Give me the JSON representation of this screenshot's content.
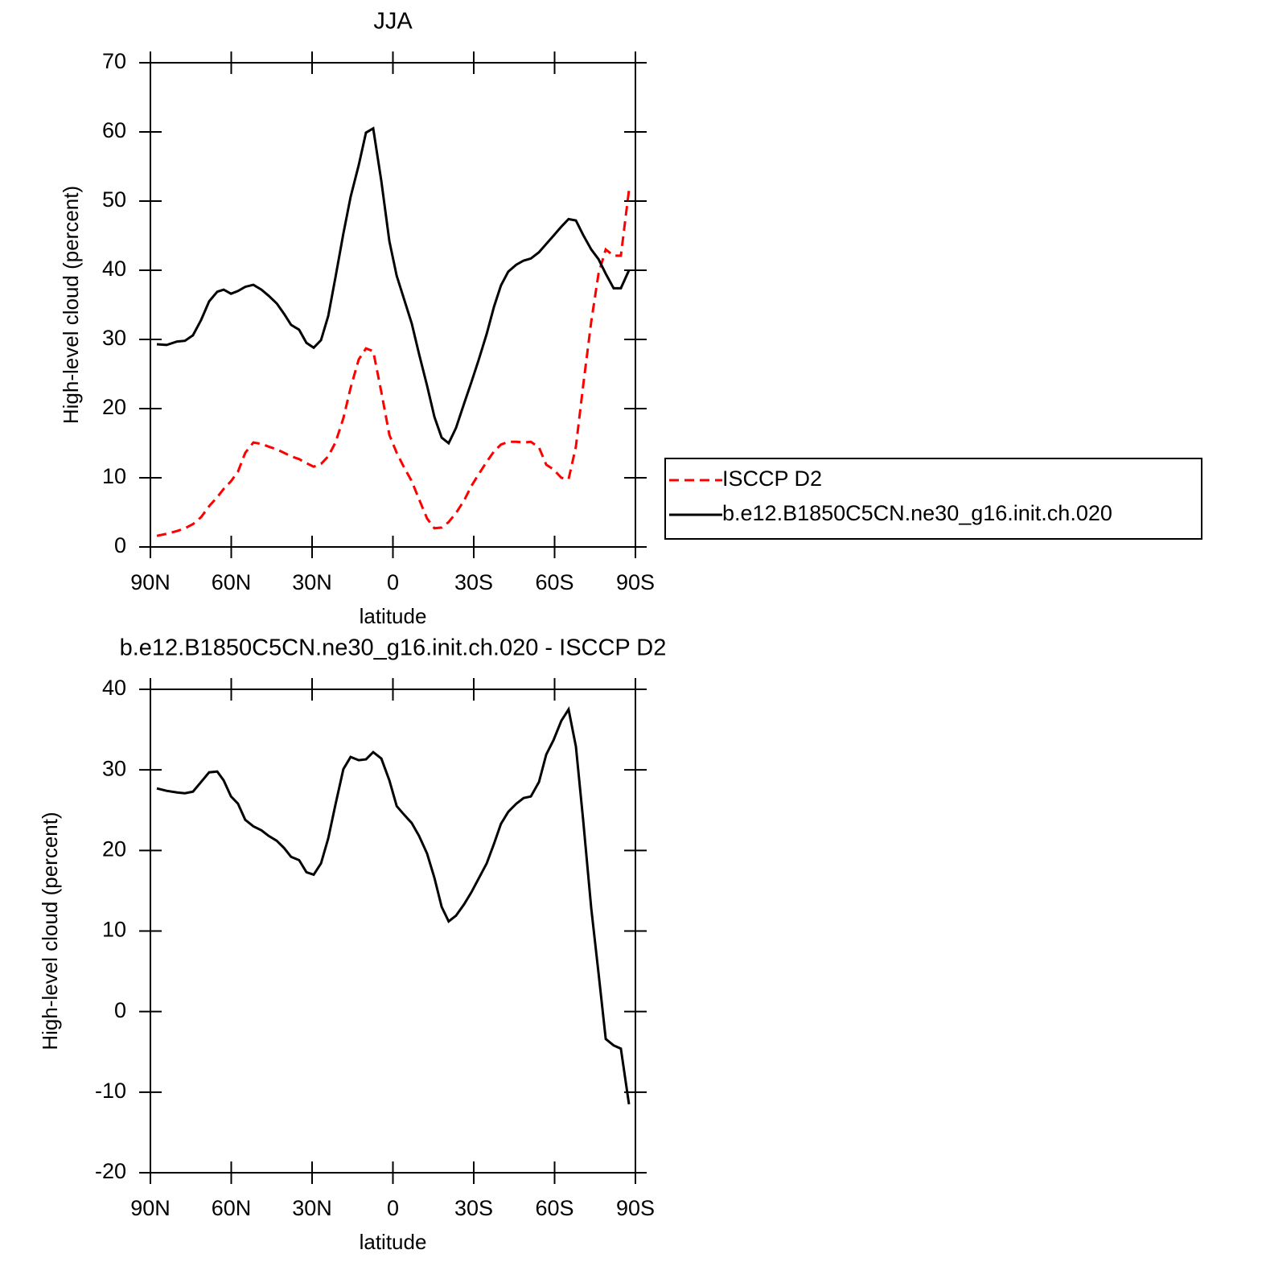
{
  "chart_data": [
    {
      "type": "line",
      "title": "JJA",
      "xlabel": "latitude",
      "ylabel": "High-level cloud (percent)",
      "x": [
        87.6,
        84.0,
        80.1,
        77.2,
        74.2,
        71.2,
        68.2,
        65.2,
        62.8,
        60.1,
        57.5,
        54.8,
        51.8,
        48.8,
        46.1,
        43.1,
        40.4,
        37.8,
        34.8,
        32.1,
        29.4,
        26.7,
        24.0,
        21.3,
        18.4,
        15.7,
        12.7,
        10.0,
        7.3,
        4.3,
        1.3,
        -1.4,
        -4.0,
        -7.0,
        -9.7,
        -12.7,
        -15.4,
        -18.1,
        -20.7,
        -23.4,
        -26.4,
        -29.1,
        -31.8,
        -34.8,
        -37.5,
        -40.1,
        -42.8,
        -45.8,
        -48.5,
        -51.2,
        -54.2,
        -56.9,
        -59.6,
        -62.5,
        -65.2,
        -67.9,
        -70.6,
        -73.6,
        -76.3,
        -79.0,
        -81.9,
        -84.6,
        -87.6
      ],
      "series": [
        {
          "name": "ISCCP D2",
          "color": "#ff0000",
          "line_style": "dashed",
          "values": [
            1.6,
            1.9,
            2.3,
            2.7,
            3.3,
            4.3,
            5.9,
            7.2,
            8.4,
            9.5,
            10.9,
            13.6,
            15.1,
            14.9,
            14.5,
            14.1,
            13.6,
            13.1,
            12.7,
            12.1,
            11.6,
            12.0,
            13.1,
            15.1,
            18.6,
            23.0,
            27.1,
            28.7,
            28.3,
            22.4,
            16.2,
            13.6,
            11.6,
            9.5,
            6.9,
            4.1,
            2.7,
            2.8,
            3.6,
            4.9,
            6.7,
            8.8,
            10.5,
            12.3,
            13.8,
            14.8,
            15.2,
            15.2,
            15.1,
            15.2,
            14.4,
            11.9,
            11.2,
            10.0,
            9.8,
            14.5,
            23.3,
            32.6,
            39.5,
            43.0,
            42.1,
            42.1,
            51.6
          ]
        },
        {
          "name": "b.e12.B1850C5CN.ne30_g16.init.ch.020",
          "color": "#000000",
          "line_style": "solid",
          "values": [
            29.3,
            29.2,
            29.7,
            29.8,
            30.6,
            32.8,
            35.5,
            36.9,
            37.2,
            36.6,
            37.0,
            37.6,
            37.9,
            37.2,
            36.3,
            35.2,
            33.7,
            32.1,
            31.4,
            29.5,
            28.8,
            29.9,
            33.4,
            39.0,
            45.3,
            50.6,
            55.2,
            59.9,
            60.5,
            52.9,
            44.2,
            39.2,
            36.0,
            32.3,
            27.9,
            23.3,
            18.8,
            15.8,
            15.0,
            17.2,
            20.7,
            23.8,
            27.0,
            30.8,
            34.7,
            37.8,
            39.8,
            40.8,
            41.4,
            41.7,
            42.6,
            43.8,
            45.0,
            46.3,
            47.4,
            47.2,
            45.1,
            43.0,
            41.6,
            39.5,
            37.4,
            37.4,
            40.0
          ]
        }
      ],
      "xlim": [
        90,
        -90
      ],
      "xticks": [
        {
          "value": 90,
          "label": "90N"
        },
        {
          "value": 60,
          "label": "60N"
        },
        {
          "value": 30,
          "label": "30N"
        },
        0,
        {
          "value": -30,
          "label": "30S"
        },
        {
          "value": -60,
          "label": "60S"
        },
        {
          "value": -90,
          "label": "90S"
        }
      ],
      "ylim": [
        0,
        70
      ],
      "yticks": [
        0,
        10,
        20,
        30,
        40,
        50,
        60,
        70
      ],
      "legend": "outside-right"
    },
    {
      "type": "line",
      "title": "b.e12.B1850C5CN.ne30_g16.init.ch.020 - ISCCP D2",
      "xlabel": "latitude",
      "ylabel": "High-level cloud (percent)",
      "x": [
        87.6,
        84.0,
        80.1,
        77.2,
        74.2,
        71.2,
        68.2,
        65.2,
        62.8,
        60.1,
        57.5,
        54.8,
        51.8,
        48.8,
        46.1,
        43.1,
        40.4,
        37.8,
        34.8,
        32.1,
        29.4,
        26.7,
        24.0,
        21.3,
        18.4,
        15.7,
        12.7,
        10.0,
        7.3,
        4.3,
        1.3,
        -1.4,
        -4.0,
        -7.0,
        -9.7,
        -12.7,
        -15.4,
        -18.1,
        -20.7,
        -23.4,
        -26.4,
        -29.1,
        -31.8,
        -34.8,
        -37.5,
        -40.1,
        -42.8,
        -45.8,
        -48.5,
        -51.2,
        -54.2,
        -56.9,
        -59.6,
        -62.5,
        -65.2,
        -67.9,
        -70.6,
        -73.6,
        -76.3,
        -79.0,
        -81.9,
        -84.6,
        -87.6
      ],
      "series": [
        {
          "color": "#000000",
          "line_style": "solid",
          "values": [
            27.7,
            27.4,
            27.2,
            27.1,
            27.3,
            28.5,
            29.7,
            29.8,
            28.7,
            26.7,
            25.8,
            23.8,
            23.0,
            22.5,
            21.8,
            21.2,
            20.3,
            19.2,
            18.8,
            17.3,
            17.0,
            18.4,
            21.5,
            25.7,
            30.1,
            31.6,
            31.2,
            31.3,
            32.2,
            31.4,
            28.7,
            25.5,
            24.5,
            23.4,
            21.8,
            19.6,
            16.6,
            13.0,
            11.2,
            11.9,
            13.3,
            14.8,
            16.5,
            18.4,
            20.8,
            23.3,
            24.8,
            25.8,
            26.5,
            26.7,
            28.5,
            31.9,
            33.7,
            36.1,
            37.5,
            32.9,
            23.8,
            12.8,
            4.8,
            -3.4,
            -4.2,
            -4.6,
            -11.5
          ]
        }
      ],
      "xlim": [
        90,
        -90
      ],
      "xticks": [
        {
          "value": 90,
          "label": "90N"
        },
        {
          "value": 60,
          "label": "60N"
        },
        {
          "value": 30,
          "label": "30N"
        },
        0,
        {
          "value": -30,
          "label": "30S"
        },
        {
          "value": -60,
          "label": "60S"
        },
        {
          "value": -90,
          "label": "90S"
        }
      ],
      "ylim": [
        -20,
        40
      ],
      "yticks": [
        -20,
        -10,
        0,
        10,
        20,
        30,
        40
      ]
    }
  ]
}
